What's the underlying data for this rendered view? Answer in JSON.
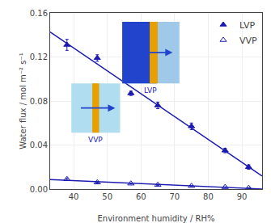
{
  "chart_data": {
    "type": "scatter",
    "xlabel": "Environment humidity / RH%",
    "ylabel": "Water flux / mol m⁻² s⁻¹",
    "xlim": [
      33,
      96
    ],
    "ylim": [
      0.0,
      0.16
    ],
    "xticks": [
      40,
      50,
      60,
      70,
      80,
      90
    ],
    "yticks": [
      {
        "value": 0.0,
        "label": "0.00"
      },
      0.04,
      0.08,
      0.12,
      0.16
    ],
    "legend": "upper right",
    "series": [
      {
        "type": "line",
        "color": "#1a1ab0",
        "x": [
          33,
          96
        ],
        "values": [
          0.142611,
          0.011837
        ]
      },
      {
        "type": "line",
        "color": "#1a1ab0",
        "x": [
          33,
          96
        ],
        "values": [
          0.0086027,
          8.7e-05
        ]
      },
      {
        "name": "LVP",
        "type": "scatter",
        "color": "#1a1ab0",
        "marker": "filled",
        "x": [
          38,
          47,
          57,
          65,
          75,
          85,
          92
        ],
        "values": [
          0.131,
          0.119,
          0.087,
          0.076,
          0.057,
          0.035,
          0.02
        ],
        "errors": [
          0.005,
          0.003,
          0.002,
          0.003,
          0.003,
          0.002,
          0.002
        ]
      },
      {
        "name": "VVP",
        "type": "scatter",
        "color": "#1a1ab0",
        "marker": "open",
        "x": [
          38,
          47,
          57,
          65,
          75,
          85,
          92
        ],
        "values": [
          0.009,
          0.006,
          0.005,
          0.0038,
          0.0028,
          0.0018,
          0.001
        ],
        "errors": [
          0.001,
          0.0005,
          0.0004,
          0.0004,
          0.0003,
          0.0002,
          0.0002
        ]
      }
    ],
    "annotations": [
      {
        "text": "LVP",
        "color": "#1a1ab0"
      },
      {
        "text": "VVP",
        "color": "#1a1ab0"
      }
    ]
  }
}
